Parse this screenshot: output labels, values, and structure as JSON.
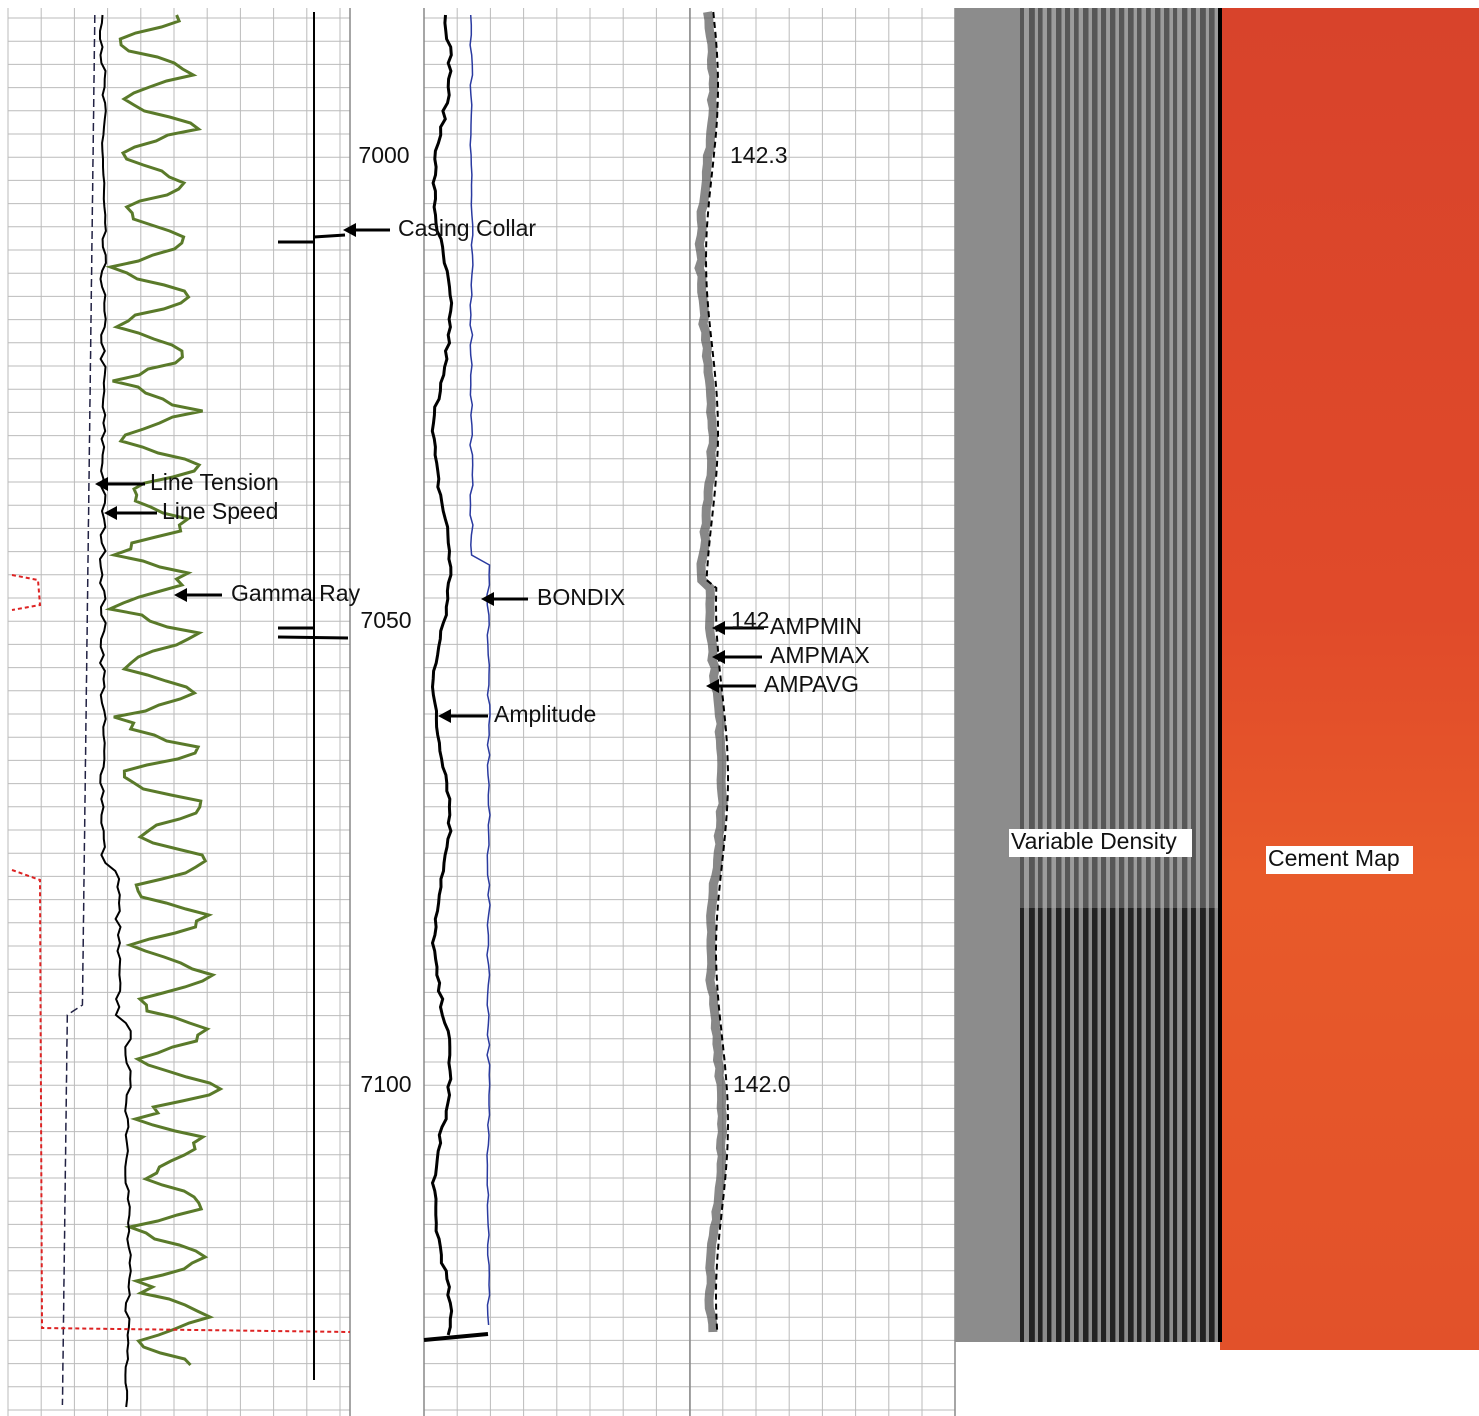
{
  "depth_labels": [
    "7000",
    "7050",
    "7100"
  ],
  "track1": {
    "annotations": [
      "Casing Collar",
      "Line Tension",
      "Line Speed",
      "Gamma Ray"
    ]
  },
  "track2": {
    "annotations": [
      "BONDIX",
      "Amplitude"
    ]
  },
  "track3": {
    "annotations": [
      "AMPMIN",
      "AMPMAX",
      "AMPAVG"
    ],
    "scale_labels": [
      "142.3",
      "142",
      "142.0"
    ]
  },
  "images": {
    "variable_density": "Variable Density",
    "cement_map": "Cement Map"
  }
}
